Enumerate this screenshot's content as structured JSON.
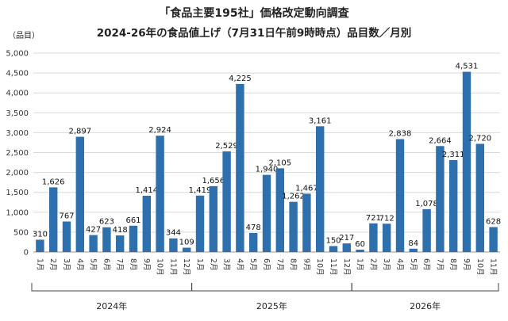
{
  "chart_data": {
    "type": "bar",
    "title": "「食品主要195社」価格改定動向調査",
    "subtitle": "2024-26年の食品値上げ（7月31日午前9時時点）品目数／月別",
    "ylabel": "（品目）",
    "xlabel": "",
    "ylim": [
      0,
      5000
    ],
    "yticks": [
      "0",
      "500",
      "1,000",
      "1,500",
      "2,000",
      "2,500",
      "3,000",
      "3,500",
      "4,000",
      "4,500",
      "5,000"
    ],
    "grid": true,
    "legend": "none",
    "bar_color": "#2e6fad",
    "categories": [
      "1月",
      "2月",
      "3月",
      "4月",
      "5月",
      "6月",
      "7月",
      "8月",
      "9月",
      "10月",
      "11月",
      "12月",
      "1月",
      "2月",
      "3月",
      "4月",
      "5月",
      "6月",
      "7月",
      "8月",
      "9月",
      "10月",
      "11月",
      "12月",
      "1月",
      "2月",
      "3月",
      "4月",
      "5月",
      "6月",
      "7月",
      "8月",
      "9月",
      "10月",
      "11月"
    ],
    "values": [
      310,
      1626,
      767,
      2897,
      427,
      623,
      418,
      661,
      1414,
      2924,
      344,
      109,
      1419,
      1656,
      2529,
      4225,
      478,
      1940,
      2105,
      1262,
      1467,
      3161,
      150,
      217,
      60,
      721,
      712,
      2838,
      84,
      1078,
      2664,
      2311,
      4531,
      2720,
      628
    ],
    "value_labels": [
      "310",
      "1,626",
      "767",
      "2,897",
      "427",
      "623",
      "418",
      "661",
      "1,414",
      "2,924",
      "344",
      "109",
      "1,419",
      "1,656",
      "2,529",
      "4,225",
      "478",
      "1,940",
      "2,105",
      "1,262",
      "1,467",
      "3,161",
      "150",
      "217",
      "60",
      "721",
      "712",
      "2,838",
      "84",
      "1,078",
      "2,664",
      "2,311",
      "4,531",
      "2,720",
      "628"
    ],
    "groups": [
      {
        "label": "2024年",
        "start": 0,
        "end": 11
      },
      {
        "label": "2025年",
        "start": 12,
        "end": 23
      },
      {
        "label": "2026年",
        "start": 24,
        "end": 34
      }
    ]
  }
}
